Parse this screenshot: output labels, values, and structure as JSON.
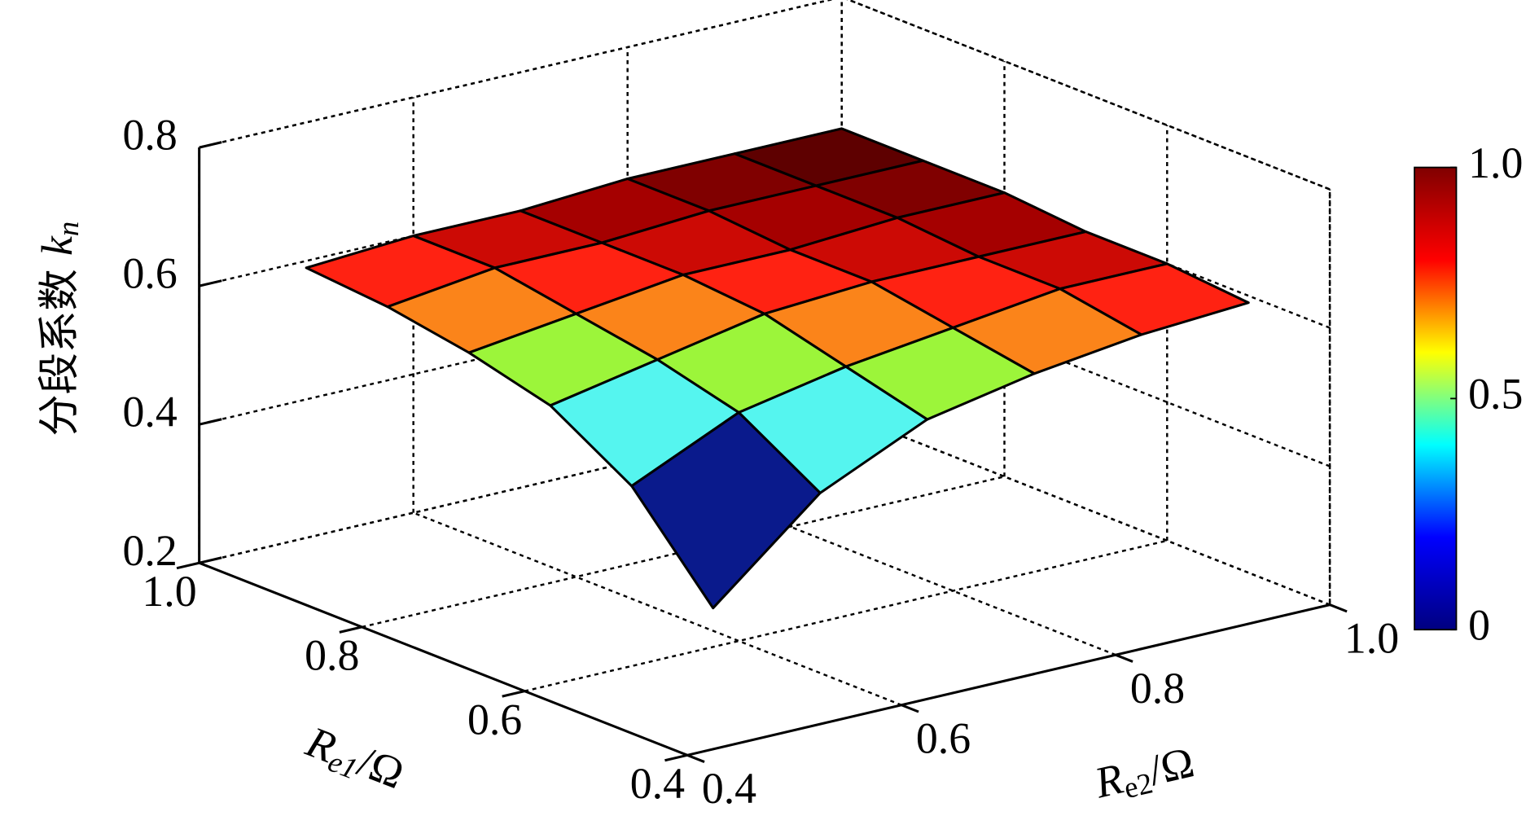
{
  "chart_data": {
    "type": "surface",
    "xlabel": [
      "R",
      "e1",
      "/Ω"
    ],
    "ylabel": [
      "R",
      "e2",
      "/Ω"
    ],
    "zlabel": [
      "分段系数 ",
      "k",
      "n"
    ],
    "x": [
      0.5,
      0.6,
      0.7,
      0.8,
      0.9,
      1.0
    ],
    "y": [
      0.5,
      0.6,
      0.7,
      0.8,
      0.9,
      1.0
    ],
    "z": [
      [
        0.33,
        0.46,
        0.53,
        0.56,
        0.58,
        0.59
      ],
      [
        0.46,
        0.53,
        0.56,
        0.58,
        0.6,
        0.6
      ],
      [
        0.53,
        0.56,
        0.59,
        0.6,
        0.6,
        0.6
      ],
      [
        0.56,
        0.58,
        0.6,
        0.6,
        0.61,
        0.61
      ],
      [
        0.58,
        0.6,
        0.6,
        0.61,
        0.61,
        0.61
      ],
      [
        0.59,
        0.6,
        0.6,
        0.61,
        0.61,
        0.61
      ]
    ],
    "xlim": [
      0.4,
      1.0
    ],
    "xticks": [
      0.4,
      0.6,
      0.8,
      {
        "value": 1,
        "label": "1.0"
      }
    ],
    "ylim": [
      0.4,
      1.0
    ],
    "yticks": [
      0.4,
      0.6,
      0.8,
      {
        "value": 1,
        "label": "1.0"
      }
    ],
    "zlim": [
      0.2,
      0.8
    ],
    "zticks": [
      0.2,
      0.4,
      0.6,
      0.8
    ],
    "grid": true,
    "colormap": [
      "#0a1a8c",
      "#55f5ef",
      "#9cf53a",
      "#fb841a",
      "#ff2212",
      "#cc0a05",
      "#a50000",
      "#800000",
      "#5e0000"
    ],
    "colorbar": {
      "lim": [
        0,
        1
      ],
      "ticks": [
        0,
        0.5,
        {
          "value": 1,
          "label": "1.0"
        }
      ],
      "colors": [
        "#000080",
        "#0000ff",
        "#00ffff",
        "#ffff00",
        "#ff0000",
        "#800000"
      ]
    }
  }
}
